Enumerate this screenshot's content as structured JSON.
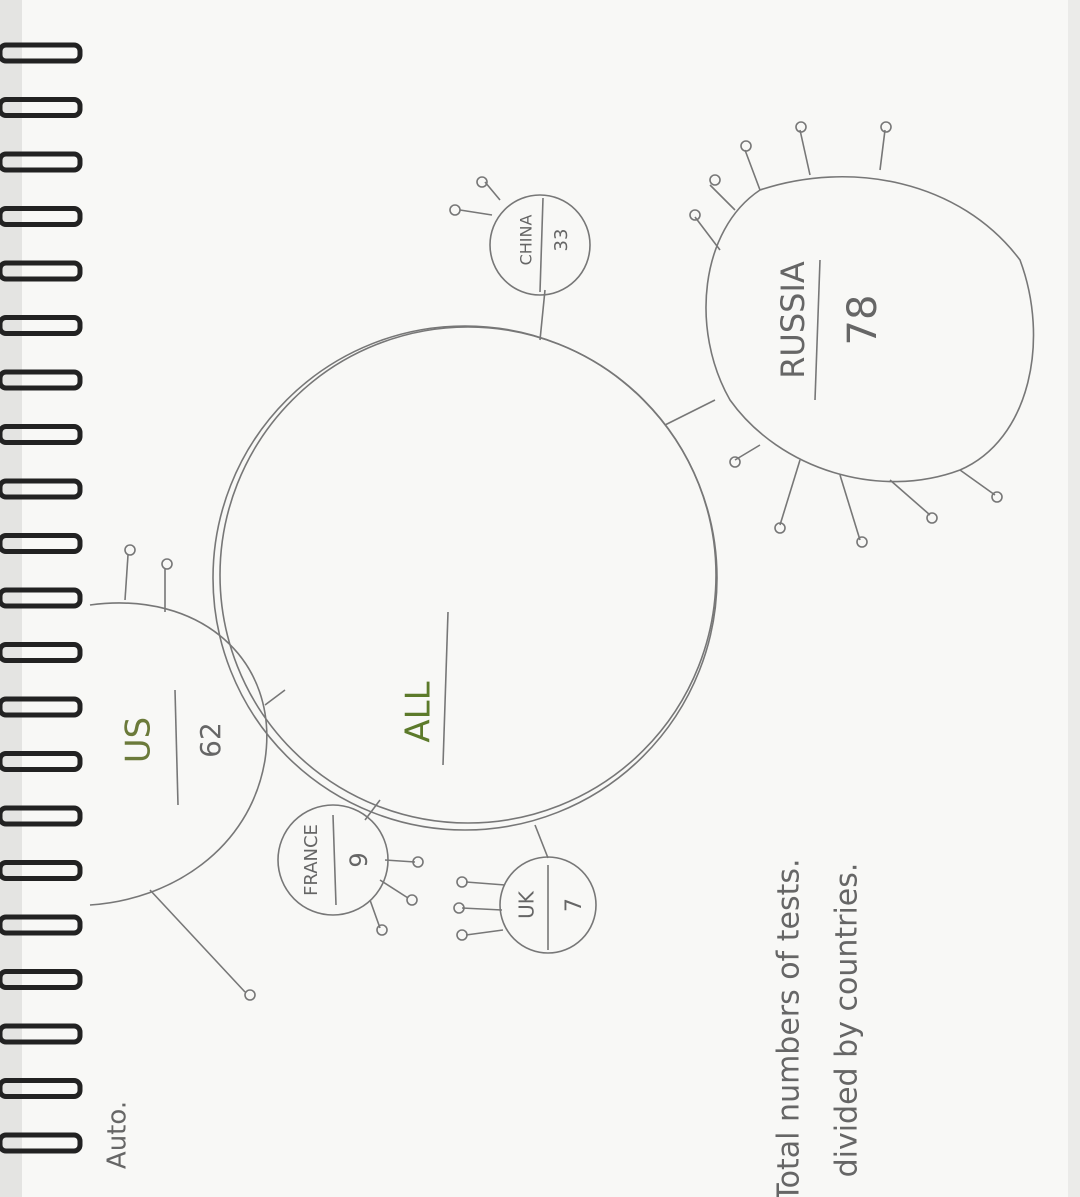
{
  "title": "Auto.",
  "caption": [
    "Total numbers of tests.",
    "divided by countries."
  ],
  "nodes": [
    {
      "label": "ALL"
    },
    {
      "label": "US",
      "value": 62
    },
    {
      "label": "FRANCE",
      "value": 9
    },
    {
      "label": "UK",
      "value": 7
    },
    {
      "label": "CHINA",
      "value": 33
    },
    {
      "label": "RUSSIA",
      "value": 78
    }
  ]
}
